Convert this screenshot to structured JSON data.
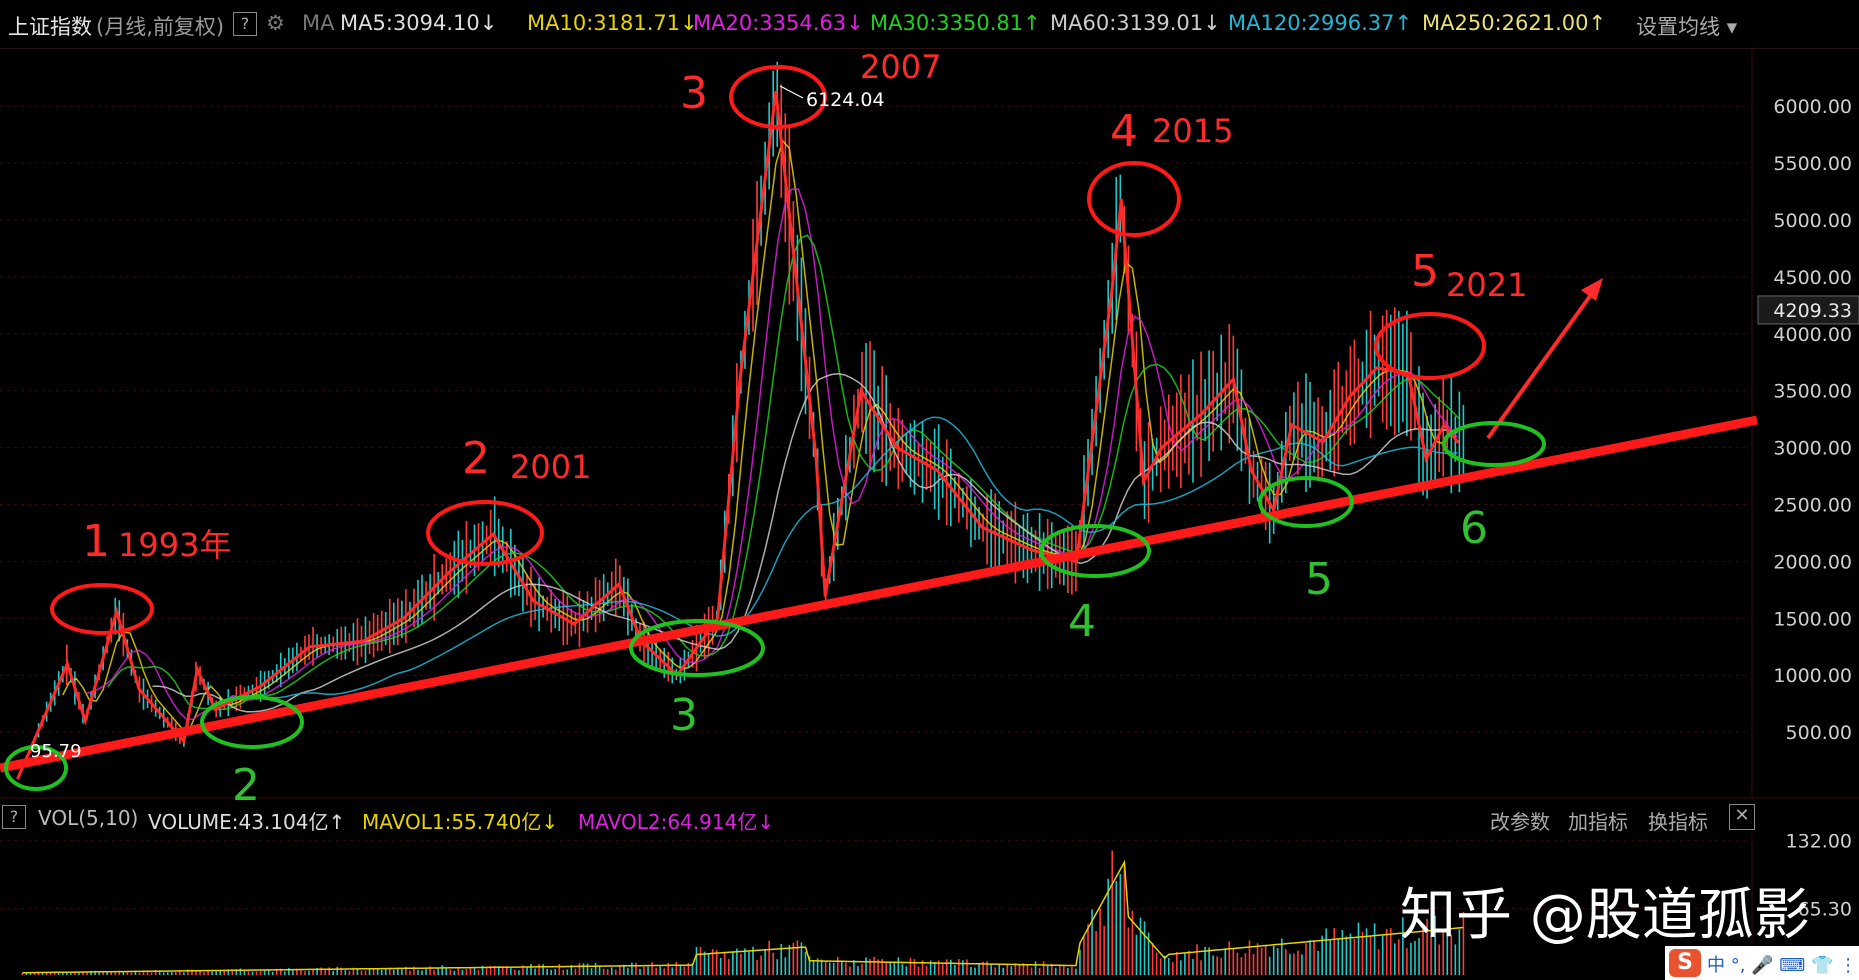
{
  "header": {
    "index_name": "上证指数",
    "period": "(月线,前复权)",
    "help": "?",
    "ma_label": "MA",
    "ma_items": [
      {
        "text": "MA5:3094.10",
        "arrow": "↓",
        "color": "#dddddd"
      },
      {
        "text": "MA10:3181.71",
        "arrow": "↓",
        "color": "#e6d400"
      },
      {
        "text": "MA20:3354.63",
        "arrow": "↓",
        "color": "#e020e0"
      },
      {
        "text": "MA30:3350.81",
        "arrow": "↑",
        "color": "#20d020"
      },
      {
        "text": "MA60:3139.01",
        "arrow": "↓",
        "color": "#cccccc"
      },
      {
        "text": "MA120:2996.37",
        "arrow": "↑",
        "color": "#20b8d8"
      },
      {
        "text": "MA250:2621.00",
        "arrow": "↑",
        "color": "#e8e070"
      }
    ],
    "settings": "设置均线"
  },
  "chart_data": {
    "type": "line",
    "title": "上证指数",
    "subtitle": "(月线,前复权)",
    "y_ticks": [
      "6000.00",
      "5500.00",
      "5000.00",
      "4500.00",
      "4000.00",
      "3500.00",
      "3000.00",
      "2500.00",
      "2000.00",
      "1500.00",
      "1000.00",
      "500.00"
    ],
    "y_range": [
      0,
      6600
    ],
    "current_price_label": "4209.33",
    "peak_label": "6124.04",
    "low_label": "95.79",
    "series": [
      {
        "name": "",
        "color": "#ff2a2a",
        "x": [
          1990.9,
          1992.0,
          1992.4,
          1993.1,
          1993.6,
          1994.6,
          1994.9,
          1995.3,
          1996.3,
          1997.4,
          1998.6,
          1999.5,
          2000.5,
          2001.5,
          2002.4,
          2003.3,
          2004.3,
          2004.8,
          2005.6,
          2006.5,
          2007.0,
          2007.8,
          2008.7,
          2008.9,
          2009.7,
          2010.5,
          2011.4,
          2012.4,
          2013.5,
          2014.5,
          2015.3,
          2015.5,
          2016.0,
          2016.4,
          2017.3,
          2018.0,
          2018.4,
          2018.9,
          2019.3,
          2020.0,
          2020.6,
          2021.2,
          2021.9,
          2022.3,
          2022.7,
          2023.0
        ],
        "y": [
          96,
          1100,
          600,
          1560,
          880,
          420,
          1050,
          700,
          900,
          1250,
          1300,
          1500,
          1900,
          2240,
          1650,
          1450,
          1800,
          1300,
          1000,
          1500,
          3600,
          6124,
          2900,
          1700,
          3500,
          3000,
          2800,
          2300,
          2100,
          2000,
          4400,
          5178,
          2700,
          3000,
          3300,
          3600,
          2800,
          2450,
          3200,
          3050,
          3450,
          3700,
          3650,
          2900,
          3200,
          3050
        ]
      }
    ],
    "annotations": {
      "tops": [
        {
          "num": "1",
          "year": "1993年"
        },
        {
          "num": "2",
          "year": "2001"
        },
        {
          "num": "3",
          "year": "2007"
        },
        {
          "num": "4",
          "year": "2015"
        },
        {
          "num": "5",
          "year": "2021"
        }
      ],
      "bottoms": [
        "1",
        "2",
        "3",
        "4",
        "5",
        "6"
      ]
    }
  },
  "volume_panel": {
    "help": "?",
    "label": "VOL(5,10)",
    "volume": "VOLUME:43.104亿",
    "volume_arrow": "↑",
    "mavol1": "MAVOL1:55.740亿",
    "mavol1_arrow": "↓",
    "mavol2": "MAVOL2:64.914亿",
    "mavol2_arrow": "↓",
    "buttons": [
      "改参数",
      "加指标",
      "换指标"
    ],
    "close": "✕",
    "y_ticks": [
      "132.00",
      "65.30"
    ]
  },
  "watermark": "知乎 @股道孤影",
  "ime": {
    "logo": "S",
    "text": "中 °, 🎤 ⌨ 👕 ⋮⋮"
  }
}
